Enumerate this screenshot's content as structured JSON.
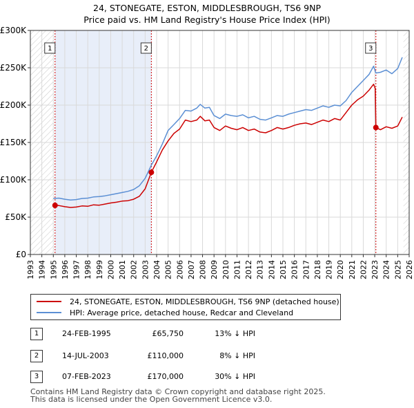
{
  "title": "24, STONEGATE, ESTON, MIDDLESBROUGH, TS6 9NP",
  "subtitle": "Price paid vs. HM Land Registry's House Price Index (HPI)",
  "colors": {
    "property": "#cc0000",
    "hpi": "#5b8fd4",
    "shade": "#e8eef9",
    "hatch": "#c8c8c8",
    "grid": "#d9d9d9"
  },
  "chart_data": {
    "type": "line",
    "xlim": [
      1993.0,
      2026.0
    ],
    "ylim": [
      0,
      300000
    ],
    "xticks": [
      "1993",
      "1994",
      "1995",
      "1996",
      "1997",
      "1998",
      "1999",
      "2000",
      "2001",
      "2002",
      "2003",
      "2004",
      "2005",
      "2006",
      "2007",
      "2008",
      "2009",
      "2010",
      "2011",
      "2012",
      "2013",
      "2014",
      "2015",
      "2016",
      "2017",
      "2018",
      "2019",
      "2020",
      "2021",
      "2022",
      "2023",
      "2024",
      "2025",
      "2026"
    ],
    "yticks": [
      {
        "value": 0,
        "label": "£0"
      },
      {
        "value": 50000,
        "label": "£50K"
      },
      {
        "value": 100000,
        "label": "£100K"
      },
      {
        "value": 150000,
        "label": "£150K"
      },
      {
        "value": 200000,
        "label": "£200K"
      },
      {
        "value": 250000,
        "label": "£250K"
      },
      {
        "value": 300000,
        "label": "£300K"
      }
    ],
    "data_range": [
      1995.0,
      2025.5
    ],
    "grid": true,
    "series": [
      {
        "name": "24, STONEGATE, ESTON, MIDDLESBROUGH, TS6 9NP (detached house)",
        "color": "#cc0000",
        "points": [
          [
            1995.15,
            65750
          ],
          [
            1995.5,
            65500
          ],
          [
            1996.0,
            64000
          ],
          [
            1996.5,
            63000
          ],
          [
            1997.0,
            63500
          ],
          [
            1997.5,
            65000
          ],
          [
            1998.0,
            64500
          ],
          [
            1998.5,
            66500
          ],
          [
            1999.0,
            66000
          ],
          [
            1999.5,
            67500
          ],
          [
            2000.0,
            69000
          ],
          [
            2000.5,
            70000
          ],
          [
            2001.0,
            71500
          ],
          [
            2001.5,
            72000
          ],
          [
            2002.0,
            74000
          ],
          [
            2002.5,
            78000
          ],
          [
            2003.0,
            88000
          ],
          [
            2003.54,
            110000
          ],
          [
            2004.0,
            124000
          ],
          [
            2004.5,
            140000
          ],
          [
            2005.0,
            152000
          ],
          [
            2005.5,
            162000
          ],
          [
            2006.0,
            168000
          ],
          [
            2006.5,
            180000
          ],
          [
            2007.0,
            178000
          ],
          [
            2007.5,
            180000
          ],
          [
            2007.8,
            185000
          ],
          [
            2008.2,
            179000
          ],
          [
            2008.6,
            180000
          ],
          [
            2009.0,
            170000
          ],
          [
            2009.5,
            166000
          ],
          [
            2010.0,
            172000
          ],
          [
            2010.5,
            169000
          ],
          [
            2011.0,
            167000
          ],
          [
            2011.5,
            170000
          ],
          [
            2012.0,
            166000
          ],
          [
            2012.5,
            168000
          ],
          [
            2013.0,
            164000
          ],
          [
            2013.5,
            163000
          ],
          [
            2014.0,
            166000
          ],
          [
            2014.5,
            170000
          ],
          [
            2015.0,
            168000
          ],
          [
            2015.5,
            170000
          ],
          [
            2016.0,
            173000
          ],
          [
            2016.5,
            175000
          ],
          [
            2017.0,
            176000
          ],
          [
            2017.5,
            174000
          ],
          [
            2018.0,
            177000
          ],
          [
            2018.5,
            180000
          ],
          [
            2019.0,
            178000
          ],
          [
            2019.5,
            182000
          ],
          [
            2020.0,
            180000
          ],
          [
            2020.5,
            190000
          ],
          [
            2021.0,
            200000
          ],
          [
            2021.5,
            207000
          ],
          [
            2022.0,
            212000
          ],
          [
            2022.5,
            220000
          ],
          [
            2022.9,
            228000
          ],
          [
            2023.05,
            222000
          ],
          [
            2023.1,
            170000
          ],
          [
            2023.5,
            167000
          ],
          [
            2024.0,
            171000
          ],
          [
            2024.5,
            169000
          ],
          [
            2025.0,
            172000
          ],
          [
            2025.4,
            184000
          ]
        ]
      },
      {
        "name": "HPI: Average price, detached house, Redcar and Cleveland",
        "color": "#5b8fd4",
        "points": [
          [
            1995.0,
            75000
          ],
          [
            1995.5,
            75500
          ],
          [
            1996.0,
            74000
          ],
          [
            1996.5,
            73000
          ],
          [
            1997.0,
            73500
          ],
          [
            1997.5,
            75000
          ],
          [
            1998.0,
            75500
          ],
          [
            1998.5,
            77000
          ],
          [
            1999.0,
            77500
          ],
          [
            1999.5,
            78500
          ],
          [
            2000.0,
            80000
          ],
          [
            2000.5,
            81500
          ],
          [
            2001.0,
            83000
          ],
          [
            2001.5,
            84500
          ],
          [
            2002.0,
            87000
          ],
          [
            2002.5,
            92000
          ],
          [
            2003.0,
            102000
          ],
          [
            2003.54,
            119500
          ],
          [
            2004.0,
            132000
          ],
          [
            2004.5,
            148000
          ],
          [
            2005.0,
            166000
          ],
          [
            2005.5,
            174000
          ],
          [
            2006.0,
            182000
          ],
          [
            2006.5,
            193000
          ],
          [
            2007.0,
            192000
          ],
          [
            2007.5,
            196000
          ],
          [
            2007.8,
            201000
          ],
          [
            2008.2,
            196000
          ],
          [
            2008.6,
            197000
          ],
          [
            2009.0,
            186000
          ],
          [
            2009.5,
            182000
          ],
          [
            2010.0,
            188000
          ],
          [
            2010.5,
            186000
          ],
          [
            2011.0,
            185000
          ],
          [
            2011.5,
            187000
          ],
          [
            2012.0,
            183000
          ],
          [
            2012.5,
            185000
          ],
          [
            2013.0,
            181000
          ],
          [
            2013.5,
            180000
          ],
          [
            2014.0,
            183000
          ],
          [
            2014.5,
            186000
          ],
          [
            2015.0,
            185000
          ],
          [
            2015.5,
            188000
          ],
          [
            2016.0,
            190000
          ],
          [
            2016.5,
            192000
          ],
          [
            2017.0,
            194000
          ],
          [
            2017.5,
            193000
          ],
          [
            2018.0,
            196000
          ],
          [
            2018.5,
            199000
          ],
          [
            2019.0,
            197000
          ],
          [
            2019.5,
            200000
          ],
          [
            2020.0,
            199000
          ],
          [
            2020.5,
            206000
          ],
          [
            2021.0,
            217000
          ],
          [
            2021.5,
            225000
          ],
          [
            2022.0,
            233000
          ],
          [
            2022.5,
            241000
          ],
          [
            2022.9,
            252000
          ],
          [
            2023.1,
            243000
          ],
          [
            2023.5,
            244000
          ],
          [
            2024.0,
            247000
          ],
          [
            2024.5,
            242000
          ],
          [
            2025.0,
            249000
          ],
          [
            2025.4,
            264000
          ]
        ]
      }
    ],
    "sales": [
      {
        "label": "1",
        "x": 1995.15,
        "y": 65750
      },
      {
        "label": "2",
        "x": 2003.54,
        "y": 110000
      },
      {
        "label": "3",
        "x": 2023.1,
        "y": 170000
      }
    ]
  },
  "legend": {
    "property_label": "24, STONEGATE, ESTON, MIDDLESBROUGH, TS6 9NP (detached house)",
    "hpi_label": "HPI: Average price, detached house, Redcar and Cleveland"
  },
  "transactions": [
    {
      "num": "1",
      "date": "24-FEB-1995",
      "price": "£65,750",
      "hpi": "13% ↓ HPI"
    },
    {
      "num": "2",
      "date": "14-JUL-2003",
      "price": "£110,000",
      "hpi": "8% ↓ HPI"
    },
    {
      "num": "3",
      "date": "07-FEB-2023",
      "price": "£170,000",
      "hpi": "30% ↓ HPI"
    }
  ],
  "footer": {
    "line1": "Contains HM Land Registry data © Crown copyright and database right 2025.",
    "line2": "This data is licensed under the Open Government Licence v3.0."
  }
}
